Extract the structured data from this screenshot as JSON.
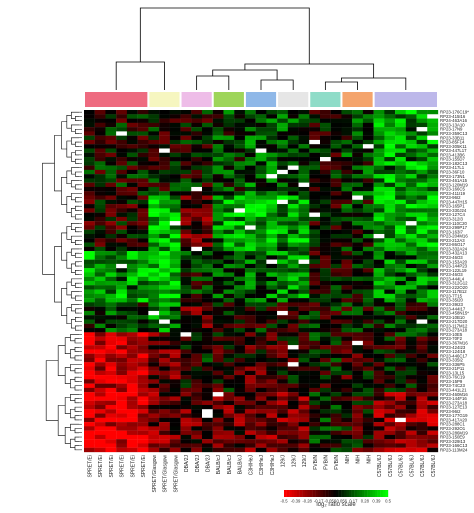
{
  "strains": [
    "SPRET/Ei",
    "SPRET/Ei",
    "SPRET/Ei",
    "SPRET/Ei",
    "SPRET/Ei",
    "SPRET/Ei",
    "SPRET/Glasgow",
    "SPRET/Glasgow",
    "SPRET/Glasgow",
    "DBA/2J",
    "DBA/2J",
    "DBA/2J",
    "BALB/cJ",
    "BALB/cJ",
    "BALB/cJ",
    "C3H/HeJ",
    "C3H/HeJ",
    "C3H/HeJ",
    "129/J",
    "129/J",
    "129/J",
    "FVB/N",
    "FVB/N",
    "FVB/N",
    "NIH",
    "NIH",
    "NIH",
    "C57BL/6J",
    "C57BL/6J",
    "C57BL/6J",
    "C57BL/6J",
    "C57BL/6J",
    "C57BL/6J"
  ],
  "group_colors": [
    "#ee6b80",
    "#f6f6c0",
    "#eebde8",
    "#9ed55a",
    "#8fb8e8",
    "#e6e6e6",
    "#8fdcc8",
    "#f4a46c",
    "#bdb8ea"
  ],
  "group_sizes": [
    6,
    3,
    3,
    3,
    3,
    3,
    3,
    3,
    6
  ],
  "clones": [
    "RP23-176C19*",
    "RP23-415I16",
    "RP24-463A16",
    "RP23-13A10",
    "RP23-17N9",
    "RP23-359C13",
    "RP23-33B11",
    "RP23-85F14",
    "RP23-305K11",
    "RP23-447L17",
    "RP23-413B6",
    "RP23-155D7",
    "RP23-182C13",
    "RP23-417L1",
    "RP23-36F10",
    "RP23-173N1",
    "RP23-461A15",
    "RP23-120M19",
    "RP23-166C5",
    "RP23-411I19",
    "RP23-96I2",
    "RP23-447H15",
    "RP23-165P1",
    "RP23-330J24",
    "RP23-127C4",
    "RP23-312I3",
    "RP23-110C20",
    "RP23-299P17",
    "RP23-163I7",
    "RP23-204M16",
    "RP23-212A3",
    "RP23-86O17",
    "RP23-332A24",
    "RP23-432A13",
    "RP23-46O3",
    "RP23-153A20",
    "RP23-144P23",
    "RP23-122L19",
    "RP23-46O3",
    "RP23-444L4",
    "RP23-312G12",
    "RP23-222O20",
    "RP23-117B12",
    "RP23-7T15",
    "RP23-35I20",
    "RP23-39I23",
    "RP23-444I17",
    "RP23-458N15*",
    "RP23-10B10",
    "RP23-217D20",
    "RP23-117M12",
    "RP23-273A18",
    "RP23-10E5",
    "RP23-70F2",
    "RP23-367M16",
    "RP23-424I23",
    "RP23-124I18",
    "RP23-446C17",
    "RP23-335I2",
    "RP23-336P5",
    "RP23-21P11",
    "RP23-13L15",
    "RP23-76C19",
    "RP23-15P9",
    "RP23-74C23",
    "RP23-441L21",
    "RP23-460M16",
    "RP23-144F16",
    "RP23-273A18",
    "RP23-127E13",
    "RP23-96I2",
    "RP23-177G19",
    "RP23-417A20",
    "RP23-288C1",
    "RP23-292O1",
    "RP23-286M19",
    "RP23-150E9",
    "RP23-329I13",
    "RP23-166C13",
    "RP23-113M24"
  ],
  "colorbar": {
    "ticks": [
      "-0.5",
      "-0.39",
      "-0.28",
      "-0.17",
      "-0.056",
      "0.056",
      "0.17",
      "0.28",
      "0.39",
      "0.5"
    ],
    "label": "log₂ ratio scale"
  },
  "colors": {
    "negative": "#ff0000",
    "zero": "#000000",
    "positive": "#00ff00",
    "missing": "#ffffff"
  }
}
